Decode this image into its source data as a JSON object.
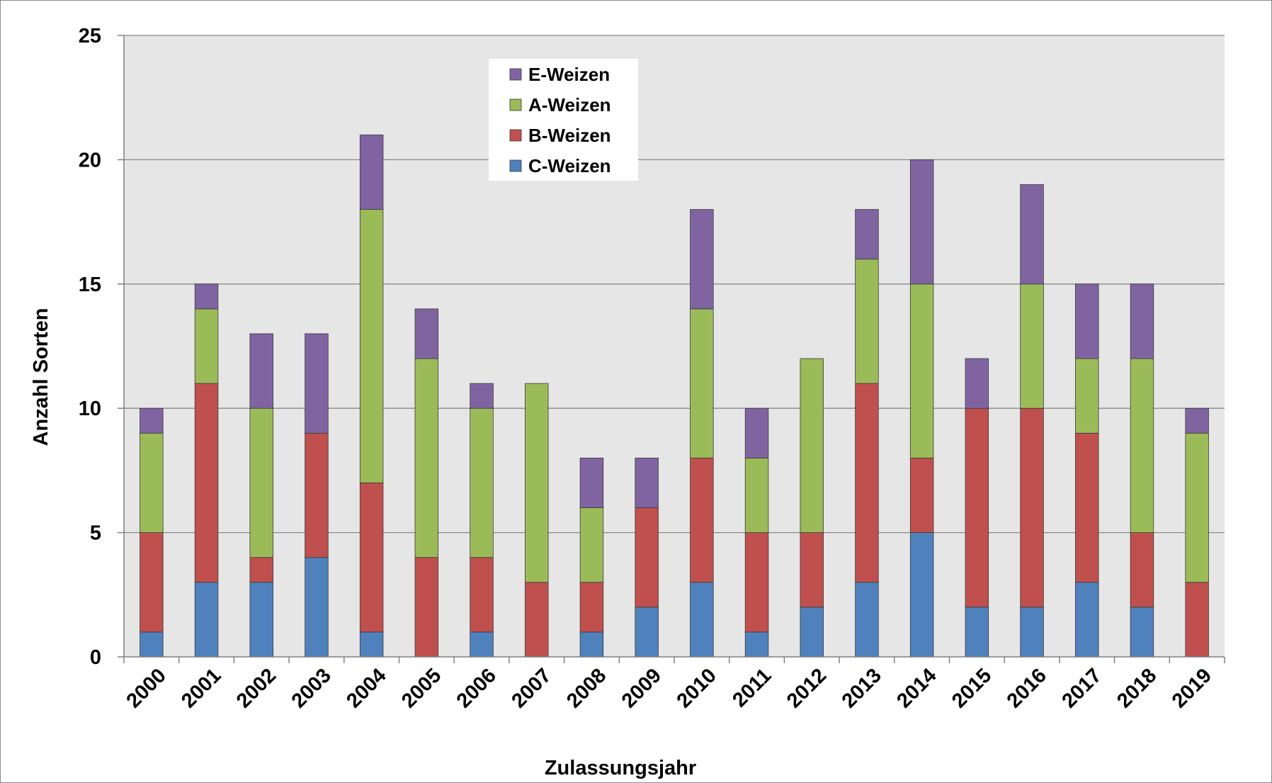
{
  "chart_data": {
    "type": "bar",
    "stacked": true,
    "categories": [
      "2000",
      "2001",
      "2002",
      "2003",
      "2004",
      "2005",
      "2006",
      "2007",
      "2008",
      "2009",
      "2010",
      "2011",
      "2012",
      "2013",
      "2014",
      "2015",
      "2016",
      "2017",
      "2018",
      "2019"
    ],
    "series": [
      {
        "name": "C-Weizen",
        "color": "#4f81bd",
        "values": [
          1,
          3,
          3,
          4,
          1,
          0,
          1,
          0,
          1,
          2,
          3,
          1,
          2,
          3,
          5,
          2,
          2,
          3,
          2,
          0
        ]
      },
      {
        "name": "B-Weizen",
        "color": "#c0504d",
        "values": [
          4,
          8,
          1,
          5,
          6,
          4,
          3,
          3,
          2,
          4,
          5,
          4,
          3,
          8,
          3,
          8,
          8,
          6,
          3,
          3
        ]
      },
      {
        "name": "A-Weizen",
        "color": "#9bbb59",
        "values": [
          4,
          3,
          6,
          0,
          11,
          8,
          6,
          8,
          3,
          0,
          6,
          3,
          7,
          5,
          7,
          0,
          5,
          3,
          7,
          6
        ]
      },
      {
        "name": "E-Weizen",
        "color": "#8064a2",
        "values": [
          1,
          1,
          3,
          4,
          3,
          2,
          1,
          0,
          2,
          2,
          4,
          2,
          0,
          2,
          5,
          2,
          4,
          3,
          3,
          1
        ]
      }
    ],
    "legend_order": [
      "E-Weizen",
      "A-Weizen",
      "B-Weizen",
      "C-Weizen"
    ],
    "xlabel": "Zulassungsjahr",
    "ylabel": "Anzahl Sorten",
    "ylim": [
      0,
      25
    ],
    "yticks": [
      0,
      5,
      10,
      15,
      20,
      25
    ],
    "grid": true,
    "legend_position": "top-center-left",
    "plot_background": "#e6e6e6"
  }
}
